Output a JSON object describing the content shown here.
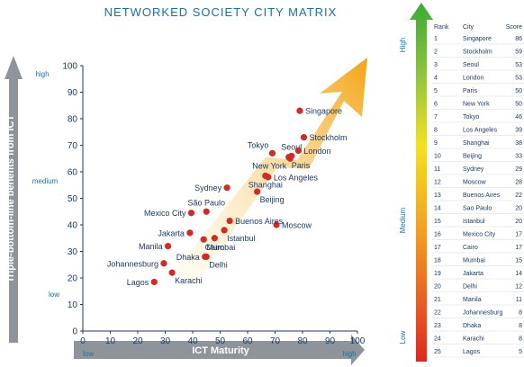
{
  "chart_data": {
    "type": "scatter",
    "title": "NETWORKED SOCIETY CITY MATRIX",
    "xlabel": "ICT Maturity",
    "ylabel": "Triple-bottom-line benefits from ICT",
    "xlim": [
      0,
      100
    ],
    "ylim": [
      0,
      100
    ],
    "xticks": [
      0,
      10,
      20,
      30,
      40,
      50,
      60,
      70,
      80,
      90,
      100
    ],
    "yticks": [
      0,
      10,
      20,
      30,
      40,
      50,
      60,
      70,
      80,
      90,
      100
    ],
    "x_levels": {
      "low": "low",
      "medium": "medium",
      "high": "high"
    },
    "y_levels": {
      "low": "low",
      "medium": "medium",
      "high": "high"
    },
    "grid": false,
    "marker_color": "#d42a23",
    "points": [
      {
        "city": "Singapore",
        "x": 79,
        "y": 83,
        "label_side": "right"
      },
      {
        "city": "Stockholm",
        "x": 80.5,
        "y": 73,
        "label_side": "right"
      },
      {
        "city": "Seoul",
        "x": 76,
        "y": 66,
        "label_side": "above"
      },
      {
        "city": "Tokyo",
        "x": 69,
        "y": 67,
        "label_side": "left-above"
      },
      {
        "city": "London",
        "x": 78.5,
        "y": 68,
        "label_side": "right"
      },
      {
        "city": "Paris",
        "x": 75,
        "y": 65.5,
        "label_side": "right-below"
      },
      {
        "city": "New York",
        "x": 75.5,
        "y": 65,
        "label_side": "left-below"
      },
      {
        "city": "Los Angeles",
        "x": 67.5,
        "y": 58,
        "label_side": "right"
      },
      {
        "city": "Shanghai",
        "x": 66.5,
        "y": 58.5,
        "label_side": "below"
      },
      {
        "city": "Beijing",
        "x": 63.5,
        "y": 52.5,
        "label_side": "right-below"
      },
      {
        "city": "Sydney",
        "x": 52.5,
        "y": 54,
        "label_side": "left"
      },
      {
        "city": "Moscow",
        "x": 70.5,
        "y": 40,
        "label_side": "right"
      },
      {
        "city": "São Paulo",
        "x": 45,
        "y": 45,
        "label_side": "above"
      },
      {
        "city": "Mexico City",
        "x": 39.5,
        "y": 44.5,
        "label_side": "left"
      },
      {
        "city": "Buenos Aires",
        "x": 53.5,
        "y": 41.5,
        "label_side": "right"
      },
      {
        "city": "Istanbul",
        "x": 51.5,
        "y": 38,
        "label_side": "right-below"
      },
      {
        "city": "Jakarta",
        "x": 39,
        "y": 37,
        "label_side": "left"
      },
      {
        "city": "Cairo",
        "x": 48,
        "y": 35,
        "label_side": "below"
      },
      {
        "city": "Mumbai",
        "x": 44,
        "y": 34.5,
        "label_side": "right-below"
      },
      {
        "city": "Manila",
        "x": 31,
        "y": 32,
        "label_side": "left"
      },
      {
        "city": "Dhaka",
        "x": 44.5,
        "y": 28,
        "label_side": "left"
      },
      {
        "city": "Delhi",
        "x": 45,
        "y": 28,
        "label_side": "right-below"
      },
      {
        "city": "Johannesburg",
        "x": 29.5,
        "y": 25.5,
        "label_side": "left"
      },
      {
        "city": "Karachi",
        "x": 32.5,
        "y": 22,
        "label_side": "right-below"
      },
      {
        "city": "Lagos",
        "x": 26,
        "y": 18.5,
        "label_side": "left"
      }
    ]
  },
  "ranking": {
    "headers": {
      "rank": "Rank",
      "city": "City",
      "score": "Score"
    },
    "levels": {
      "high": "High",
      "medium": "Medium",
      "low": "Low"
    },
    "rows": [
      {
        "rank": "1",
        "city": "Singapore",
        "score": "86"
      },
      {
        "rank": "2",
        "city": "Stockholm",
        "score": "59"
      },
      {
        "rank": "3",
        "city": "Seoul",
        "score": "53"
      },
      {
        "rank": "4",
        "city": "London",
        "score": "53"
      },
      {
        "rank": "5",
        "city": "Paris",
        "score": "50"
      },
      {
        "rank": "6",
        "city": "New York",
        "score": "50"
      },
      {
        "rank": "7",
        "city": "Tokyo",
        "score": "46"
      },
      {
        "rank": "8",
        "city": "Los Angeles",
        "score": "39"
      },
      {
        "rank": "9",
        "city": "Shanghai",
        "score": "38"
      },
      {
        "rank": "10",
        "city": "Beijing",
        "score": "33"
      },
      {
        "rank": "11",
        "city": "Sydney",
        "score": "29"
      },
      {
        "rank": "12",
        "city": "Moscow",
        "score": "28"
      },
      {
        "rank": "13",
        "city": "Buenos Aires",
        "score": "22"
      },
      {
        "rank": "14",
        "city": "Sao Paulo",
        "score": "20"
      },
      {
        "rank": "15",
        "city": "Istanbul",
        "score": "20"
      },
      {
        "rank": "16",
        "city": "Mexico City",
        "score": "17"
      },
      {
        "rank": "17",
        "city": "Cairo",
        "score": "17"
      },
      {
        "rank": "18",
        "city": "Mumbai",
        "score": "15"
      },
      {
        "rank": "19",
        "city": "Jakarta",
        "score": "14"
      },
      {
        "rank": "20",
        "city": "Delhi",
        "score": "12"
      },
      {
        "rank": "21",
        "city": "Manila",
        "score": "11"
      },
      {
        "rank": "22",
        "city": "Johannesburg",
        "score": "8"
      },
      {
        "rank": "23",
        "city": "Dhaka",
        "score": "8"
      },
      {
        "rank": "24",
        "city": "Karachi",
        "score": "8"
      },
      {
        "rank": "25",
        "city": "Lagos",
        "score": "5"
      }
    ],
    "gradient_colors": [
      "#e0261f",
      "#f59a1f",
      "#f4e11e",
      "#8fc53c",
      "#3aaa35"
    ]
  },
  "colors": {
    "title": "#1b6fa8",
    "axis_text": "#1b3a66",
    "level_text": "#1b6fa8",
    "grey_arrow": "#8e9499",
    "trend_arrow_start": "#fbe7a8",
    "trend_arrow_end": "#f4a516"
  }
}
